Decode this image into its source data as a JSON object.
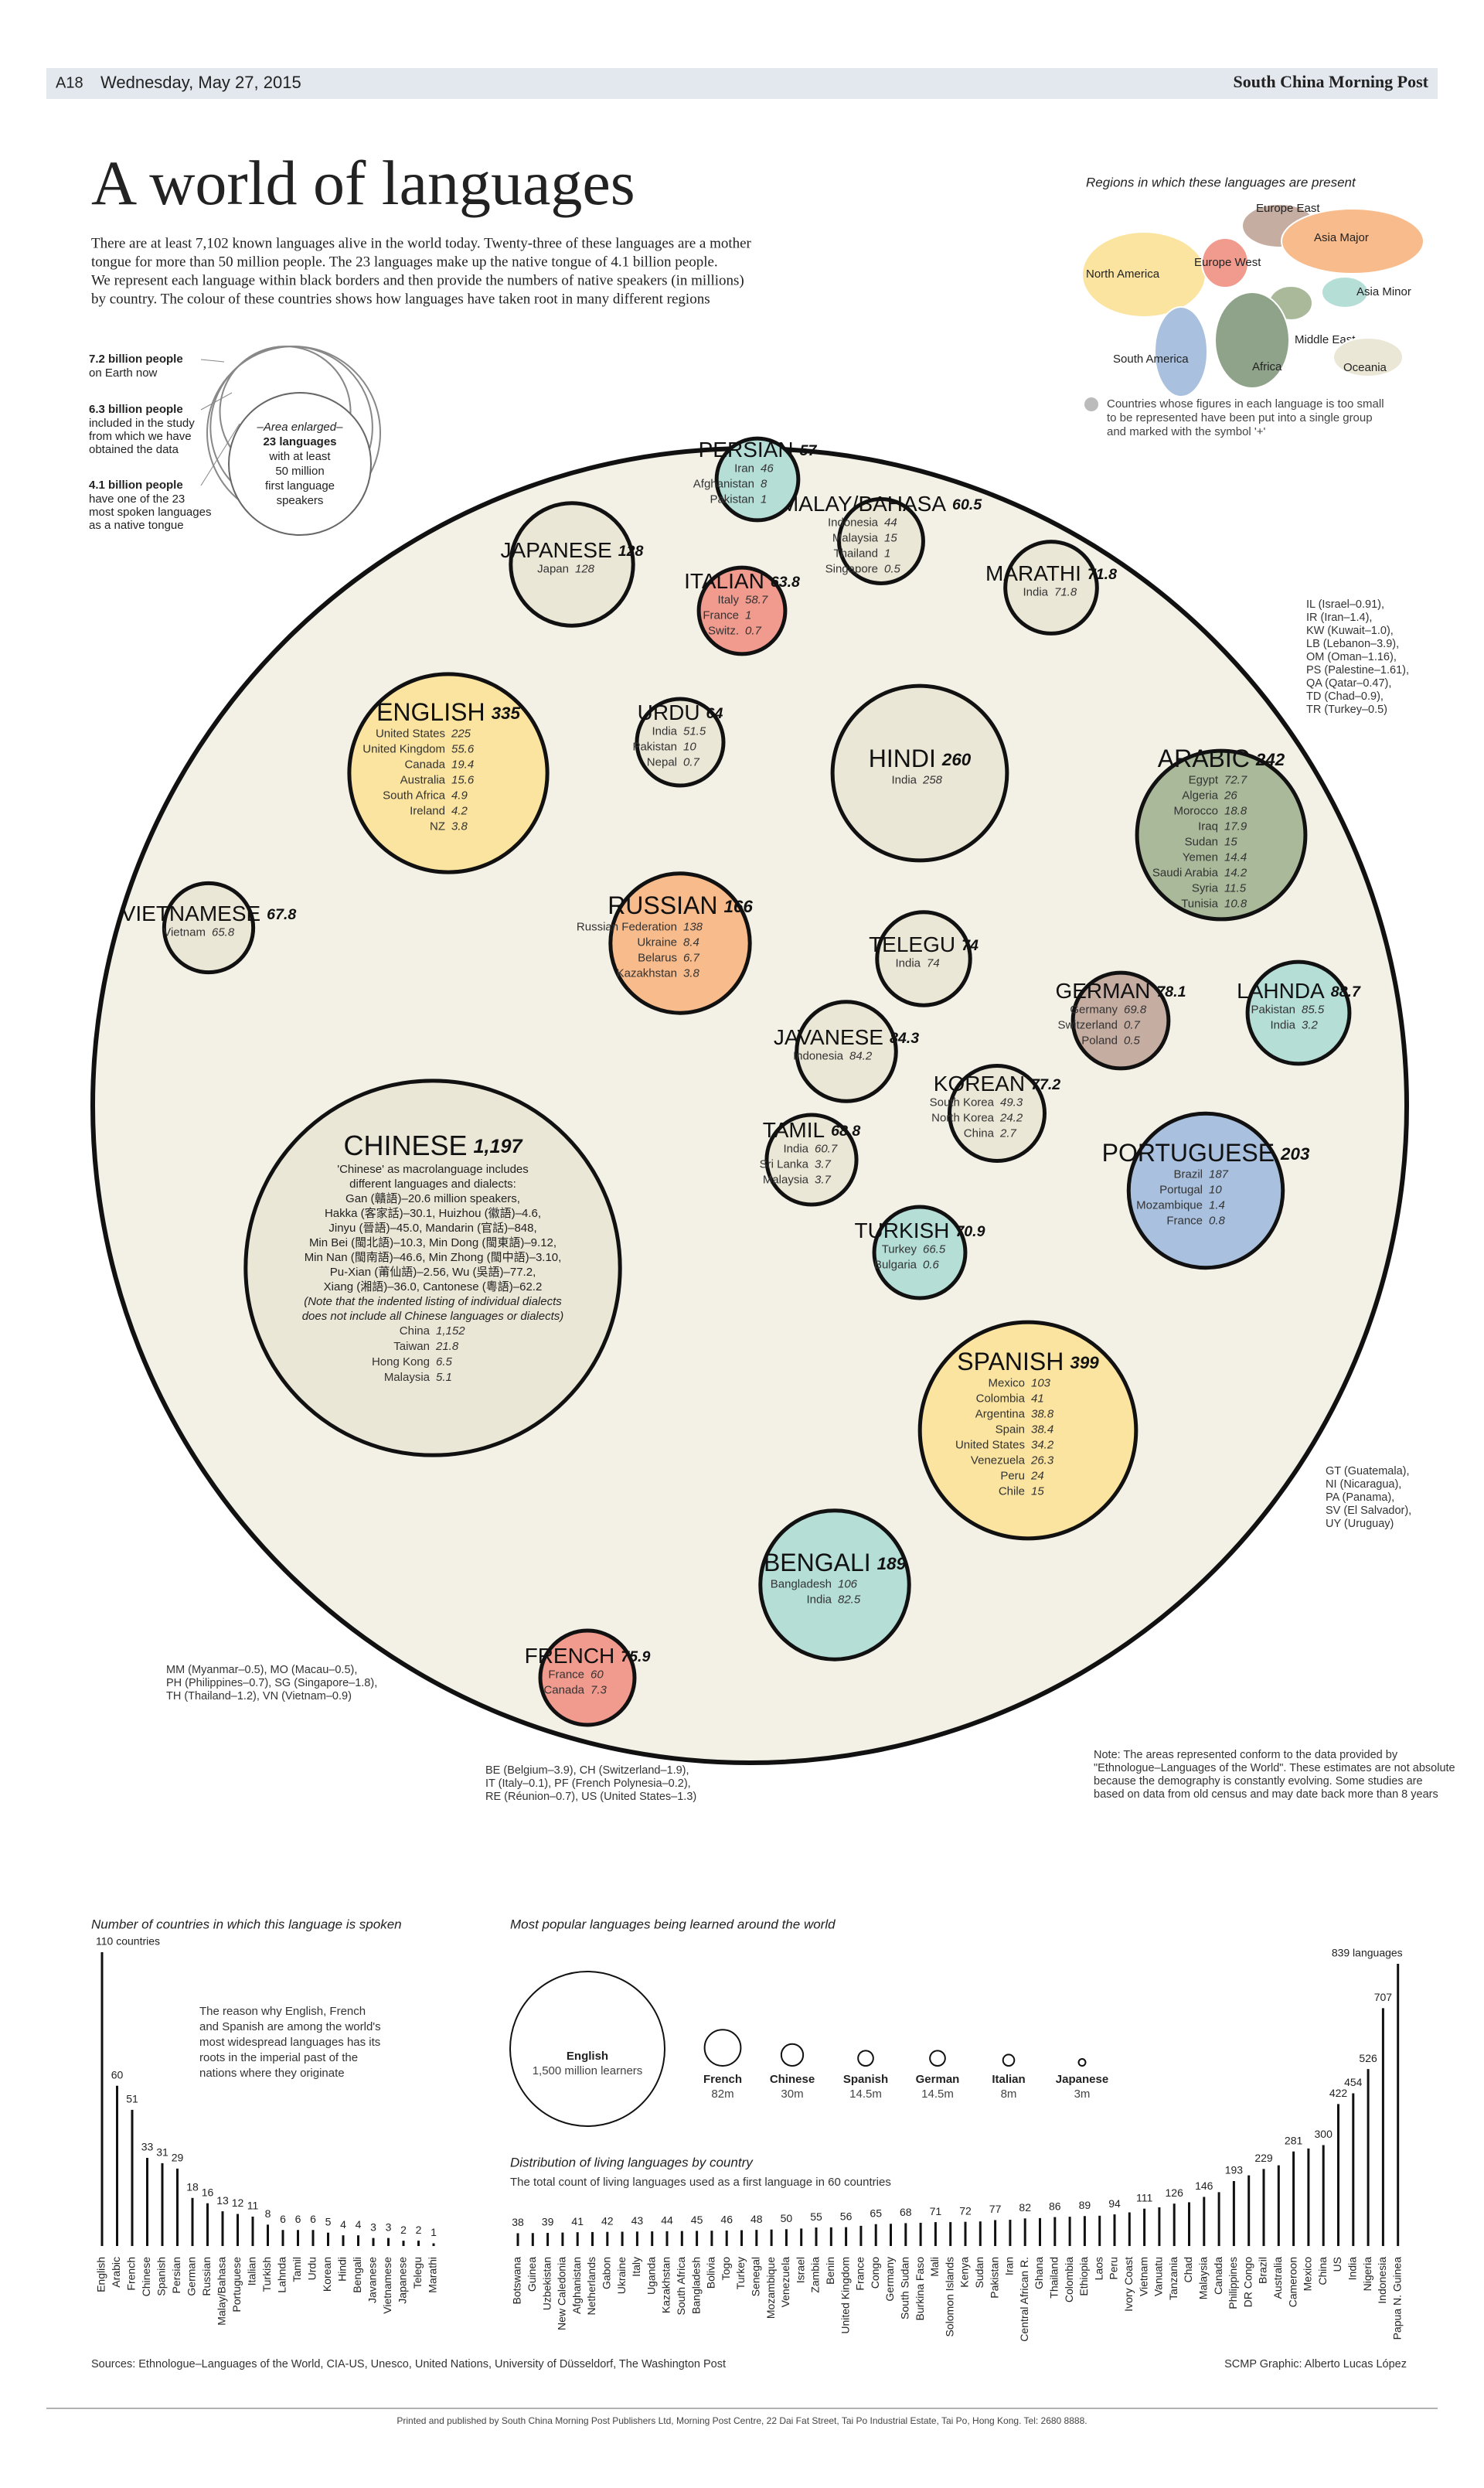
{
  "header": {
    "page": "A18",
    "date": "Wednesday, May 27, 2015",
    "paper": "South China Morning Post"
  },
  "title": "A world of languages",
  "intro": [
    "There are at least 7,102 known languages alive in the world today. Twenty-three of these languages are a mother",
    "tongue for more than 50 million people. The 23 languages make up the native tongue of 4.1 billion people.",
    "We represent each language within black borders and then provide the numbers of native speakers (in millions)",
    "by country. The colour of these countries shows how languages have taken root in many different regions"
  ],
  "population": [
    {
      "value": 7.2,
      "label": "7.2 billion people",
      "note": [
        "on Earth now"
      ]
    },
    {
      "value": 6.3,
      "label": "6.3 billion people",
      "note": [
        "included in the study",
        "from which we have",
        "obtained the data"
      ]
    },
    {
      "value": 4.1,
      "label": "4.1 billion people",
      "note": [
        "have one of the 23",
        "most spoken languages",
        "as a native tongue"
      ]
    }
  ],
  "enlarged": [
    "–Area enlarged–",
    "23 languages",
    "with at least",
    "50 million",
    "first language",
    "speakers"
  ],
  "map": {
    "title": "Regions in which these languages are present",
    "regions": [
      {
        "name": "North America",
        "color": "#fbe4a0"
      },
      {
        "name": "Europe West",
        "color": "#f19a8e"
      },
      {
        "name": "Europe East",
        "color": "#c5ada2"
      },
      {
        "name": "Asia Major",
        "color": "#f8bb8c"
      },
      {
        "name": "Asia Minor",
        "color": "#b5ded7"
      },
      {
        "name": "Middle East",
        "color": "#a9b99a"
      },
      {
        "name": "South America",
        "color": "#a9c1de"
      },
      {
        "name": "Africa",
        "color": "#8fa38a"
      },
      {
        "name": "Oceania",
        "color": "#ebe7d7"
      }
    ],
    "note": [
      "Countries whose figures in each language is too small",
      "to be represented have been put into a single group",
      "and marked with the symbol '+'"
    ]
  },
  "notes": {
    "arabic": [
      "IL (Israel–0.91),",
      "IR (Iran–1.4),",
      "KW (Kuwait–1.0),",
      "LB (Lebanon–3.9),",
      "OM (Oman–1.16),",
      "PS (Palestine–1.61),",
      "QA (Qatar–0.47),",
      "TD (Chad–0.9),",
      "TR (Turkey–0.5)"
    ],
    "asia": [
      "MM (Myanmar–0.5), MO (Macau–0.5),",
      "PH (Philippines–0.7), SG (Singapore–1.8),",
      "TH (Thailand–1.2), VN (Vietnam–0.9)"
    ],
    "french": [
      "BE (Belgium–3.9), CH (Switzerland–1.9),",
      "IT (Italy–0.1), PF (French Polynesia–0.2),",
      "RE (Réunion–0.7), US (United States–1.3)"
    ],
    "spanish": [
      "GT (Guatemala),",
      "NI (Nicaragua),",
      "PA (Panama),",
      "SV (El Salvador),",
      "UY (Uruguay)"
    ],
    "source": [
      "Note: The areas represented conform to the data provided by",
      "\"Ethnologue–Languages of the World\". These estimates are not absolute",
      "because the demography is constantly evolving. Some studies are",
      "based on data from old census and may date back more than 8 years"
    ]
  },
  "chart_data": [
    {
      "type": "bubble",
      "categories": [
        "CHINESE",
        "SPANISH",
        "ENGLISH",
        "HINDI",
        "ARABIC",
        "PORTUGUESE",
        "BENGALI",
        "RUSSIAN",
        "JAPANESE",
        "LAHNDA",
        "JAVANESE",
        "GERMAN",
        "KOREAN",
        "FRENCH",
        "TELEGU",
        "MARATHI",
        "TURKISH",
        "TAMIL",
        "VIETNAMESE",
        "URDU",
        "ITALIAN",
        "MALAY/BAHASA",
        "PERSIAN"
      ],
      "values": [
        1197,
        399,
        335,
        260,
        242,
        203,
        189,
        166,
        128,
        88.7,
        84.3,
        78.1,
        77.2,
        75.9,
        74,
        71.8,
        70.9,
        68.8,
        67.8,
        64,
        63.8,
        60.5,
        57
      ],
      "value_labels": [
        "1,197",
        "399",
        "335",
        "260",
        "242",
        "203",
        "189",
        "166",
        "128",
        "88.7",
        "84.3",
        "78.1",
        "77.2",
        "75.9",
        "74",
        "71.8",
        "70.9",
        "68.8",
        "67.8",
        "64",
        "63.8",
        "60.5",
        "57"
      ],
      "colors": [
        "#ebe7d7",
        "#fbe4a0",
        "#fbe4a0",
        "#ebe7d7",
        "#a9b99a",
        "#a9c1de",
        "#b5ded7",
        "#f8bb8c",
        "#ebe7d7",
        "#b5ded7",
        "#ebe7d7",
        "#c5ada2",
        "#ebe7d7",
        "#f19a8e",
        "#ebe7d7",
        "#ebe7d7",
        "#b5ded7",
        "#ebe7d7",
        "#ebe7d7",
        "#ebe7d7",
        "#f19a8e",
        "#ebe7d7",
        "#b5ded7"
      ],
      "countries": [
        [
          {
            "name": "China",
            "value": 1152,
            "label": "1,152"
          },
          {
            "name": "Taiwan",
            "value": 21.8
          },
          {
            "name": "Hong Kong",
            "value": 6.5
          },
          {
            "name": "Malaysia",
            "value": 5.1
          }
        ],
        [
          {
            "name": "Mexico",
            "value": 103
          },
          {
            "name": "Colombia",
            "value": 41
          },
          {
            "name": "Argentina",
            "value": 38.8
          },
          {
            "name": "Spain",
            "value": 38.4
          },
          {
            "name": "United States",
            "value": 34.2
          },
          {
            "name": "Venezuela",
            "value": 26.3
          },
          {
            "name": "Peru",
            "value": 24
          },
          {
            "name": "Chile",
            "value": 15
          }
        ],
        [
          {
            "name": "United States",
            "value": 225
          },
          {
            "name": "United Kingdom",
            "value": 55.6
          },
          {
            "name": "Canada",
            "value": 19.4
          },
          {
            "name": "Australia",
            "value": 15.6
          },
          {
            "name": "South Africa",
            "value": 4.9
          },
          {
            "name": "Ireland",
            "value": 4.2
          },
          {
            "name": "NZ",
            "value": 3.8
          }
        ],
        [
          {
            "name": "India",
            "value": 258
          }
        ],
        [
          {
            "name": "Egypt",
            "value": 72.7
          },
          {
            "name": "Algeria",
            "value": 26
          },
          {
            "name": "Morocco",
            "value": 18.8
          },
          {
            "name": "Iraq",
            "value": 17.9
          },
          {
            "name": "Sudan",
            "value": 15
          },
          {
            "name": "Yemen",
            "value": 14.4
          },
          {
            "name": "Saudi Arabia",
            "value": 14.2
          },
          {
            "name": "Syria",
            "value": 11.5
          },
          {
            "name": "Tunisia",
            "value": 10.8
          }
        ],
        [
          {
            "name": "Brazil",
            "value": 187
          },
          {
            "name": "Portugal",
            "value": 10
          },
          {
            "name": "Mozambique",
            "value": 1.4
          },
          {
            "name": "France",
            "value": 0.8
          }
        ],
        [
          {
            "name": "Bangladesh",
            "value": 106
          },
          {
            "name": "India",
            "value": 82.5
          }
        ],
        [
          {
            "name": "Russian Federation",
            "value": 138
          },
          {
            "name": "Ukraine",
            "value": 8.4
          },
          {
            "name": "Belarus",
            "value": 6.7
          },
          {
            "name": "Kazakhstan",
            "value": 3.8
          }
        ],
        [
          {
            "name": "Japan",
            "value": 128
          }
        ],
        [
          {
            "name": "Pakistan",
            "value": 85.5
          },
          {
            "name": "India",
            "value": 3.2
          }
        ],
        [
          {
            "name": "Indonesia",
            "value": 84.2
          }
        ],
        [
          {
            "name": "Germany",
            "value": 69.8
          },
          {
            "name": "Switzerland",
            "value": 0.7
          },
          {
            "name": "Poland",
            "value": 0.5
          }
        ],
        [
          {
            "name": "South Korea",
            "value": 49.3
          },
          {
            "name": "North Korea",
            "value": 24.2
          },
          {
            "name": "China",
            "value": 2.7
          }
        ],
        [
          {
            "name": "France",
            "value": 60
          },
          {
            "name": "Canada",
            "value": 7.3
          }
        ],
        [
          {
            "name": "India",
            "value": 74
          }
        ],
        [
          {
            "name": "India",
            "value": 71.8
          }
        ],
        [
          {
            "name": "Turkey",
            "value": 66.5
          },
          {
            "name": "Bulgaria",
            "value": 0.6
          }
        ],
        [
          {
            "name": "India",
            "value": 60.7
          },
          {
            "name": "Sri Lanka",
            "value": 3.7
          },
          {
            "name": "Malaysia",
            "value": 3.7
          }
        ],
        [
          {
            "name": "Vietnam",
            "value": 65.8
          }
        ],
        [
          {
            "name": "India",
            "value": 51.5
          },
          {
            "name": "Pakistan",
            "value": 10
          },
          {
            "name": "Nepal",
            "value": 0.7
          }
        ],
        [
          {
            "name": "Italy",
            "value": 58.7
          },
          {
            "name": "France",
            "value": 1
          },
          {
            "name": "Switz.",
            "value": 0.7
          }
        ],
        [
          {
            "name": "Indonesia",
            "value": 44
          },
          {
            "name": "Malaysia",
            "value": 15
          },
          {
            "name": "Thailand",
            "value": 1
          },
          {
            "name": "Singapore",
            "value": 0.5
          }
        ],
        [
          {
            "name": "Iran",
            "value": 46
          },
          {
            "name": "Afghanistan",
            "value": 8
          },
          {
            "name": "Pakistan",
            "value": 1
          }
        ]
      ],
      "chinese_note": [
        "'Chinese' as macrolanguage includes",
        "different languages and dialects:",
        "Gan (贛語)–20.6 million speakers,",
        "Hakka (客家話)–30.1, Huizhou (徽語)–4.6,",
        "Jinyu (晉語)–45.0, Mandarin (官話)–848,",
        "Min Bei (閩北語)–10.3, Min Dong (閩東語)–9.12,",
        "Min Nan (閩南語)–46.6, Min Zhong (閩中語)–3.10,",
        "Pu-Xian (莆仙語)–2.56, Wu (吳語)–77.2,",
        "Xiang (湘語)–36.0, Cantonese (粵語)–62.2",
        "(Note that the indented listing of individual dialects",
        "does not include all Chinese languages or dialects)"
      ]
    },
    {
      "type": "bar",
      "title": "Number of countries in which this language is spoken",
      "categories": [
        "English",
        "Arabic",
        "French",
        "Chinese",
        "Spanish",
        "Persian",
        "German",
        "Russian",
        "Malay/Bahasa",
        "Portuguese",
        "Italian",
        "Turkish",
        "Lahnda",
        "Tamil",
        "Urdu",
        "Korean",
        "Hindi",
        "Bengali",
        "Javanese",
        "Vietnamese",
        "Japanese",
        "Telegu",
        "Marathi"
      ],
      "values": [
        110,
        60,
        51,
        33,
        31,
        29,
        18,
        16,
        13,
        12,
        11,
        8,
        6,
        6,
        6,
        5,
        4,
        4,
        3,
        3,
        2,
        2,
        1
      ],
      "value_labels": [
        "110 countries",
        "60",
        "51",
        "33",
        "31",
        "29",
        "18",
        "16",
        "13",
        "12",
        "11",
        "8",
        "6",
        "6",
        "6",
        "5",
        "4",
        "4",
        "3",
        "3",
        "2",
        "2",
        "1"
      ],
      "annotation": [
        "The reason why English, French",
        "and Spanish are among the world's",
        "most widespread languages has its",
        "roots in the imperial past of the",
        "nations where they originate"
      ]
    },
    {
      "type": "bubble-row",
      "title": "Most popular languages being learned around the world",
      "categories": [
        "English",
        "French",
        "Chinese",
        "Spanish",
        "German",
        "Italian",
        "Japanese"
      ],
      "values": [
        1500,
        82,
        30,
        14.5,
        14.5,
        8,
        3
      ],
      "value_labels": [
        "1,500 million learners",
        "82m",
        "30m",
        "14.5m",
        "14.5m",
        "8m",
        "3m"
      ]
    },
    {
      "type": "bar",
      "title": "Distribution of living languages by country",
      "subtitle": "The total count of living languages used as a first language in 60 countries",
      "categories": [
        "Botswana",
        "Guinea",
        "Uzbekistan",
        "New Caledonia",
        "Afghanistan",
        "Netherlands",
        "Gabon",
        "Ukraine",
        "Italy",
        "Uganda",
        "Kazakhstan",
        "South Africa",
        "Bangladesh",
        "Bolivia",
        "Togo",
        "Turkey",
        "Senegal",
        "Mozambique",
        "Venezuela",
        "Israel",
        "Zambia",
        "Benin",
        "United Kingdom",
        "France",
        "Congo",
        "Germany",
        "South Sudan",
        "Burkina Faso",
        "Mali",
        "Solomon Islands",
        "Kenya",
        "Sudan",
        "Pakistan",
        "Iran",
        "Central African R.",
        "Ghana",
        "Thailand",
        "Colombia",
        "Ethiopia",
        "Laos",
        "Peru",
        "Ivory Coast",
        "Vietnam",
        "Vanuatu",
        "Tanzania",
        "Chad",
        "Malaysia",
        "Canada",
        "Philippines",
        "DR Congo",
        "Brazil",
        "Australia",
        "Cameroon",
        "Mexico",
        "China",
        "US",
        "India",
        "Nigeria",
        "Indonesia",
        "Papua N. Guinea"
      ],
      "values": [
        38,
        38.5,
        39,
        40,
        41,
        41.5,
        42,
        42.5,
        43,
        43.5,
        44,
        44.5,
        45,
        45.5,
        46,
        47,
        48,
        49,
        50,
        52,
        55,
        55.5,
        56,
        60,
        65,
        66,
        68,
        69,
        71,
        71,
        72,
        73,
        77,
        78,
        82,
        83,
        86,
        87,
        89,
        90,
        94,
        100,
        111,
        115,
        126,
        130,
        146,
        160,
        193,
        210,
        229,
        240,
        281,
        290,
        300,
        422,
        454,
        526,
        707,
        839
      ],
      "value_labels": [
        "38",
        null,
        "39",
        null,
        "41",
        null,
        "42",
        null,
        "43",
        null,
        "44",
        null,
        "45",
        null,
        "46",
        null,
        "48",
        null,
        "50",
        null,
        "55",
        null,
        "56",
        null,
        "65",
        null,
        "68",
        null,
        "71",
        null,
        "72",
        null,
        "77",
        null,
        "82",
        null,
        "86",
        null,
        "89",
        null,
        "94",
        null,
        "111",
        null,
        "126",
        null,
        "146",
        null,
        "193",
        null,
        "229",
        null,
        "281",
        null,
        "300",
        "422",
        "454",
        "526",
        "707",
        "839 languages"
      ]
    }
  ],
  "sources": "Sources: Ethnologue–Languages of the World, CIA-US, Unesco, United Nations, University of Düsseldorf, The Washington Post",
  "credit": "SCMP Graphic: Alberto Lucas López",
  "footer": "Printed and published by South China Morning Post Publishers Ltd, Morning Post Centre, 22 Dai Fat Street, Tai Po Industrial Estate, Tai Po, Hong Kong. Tel: 2680 8888."
}
